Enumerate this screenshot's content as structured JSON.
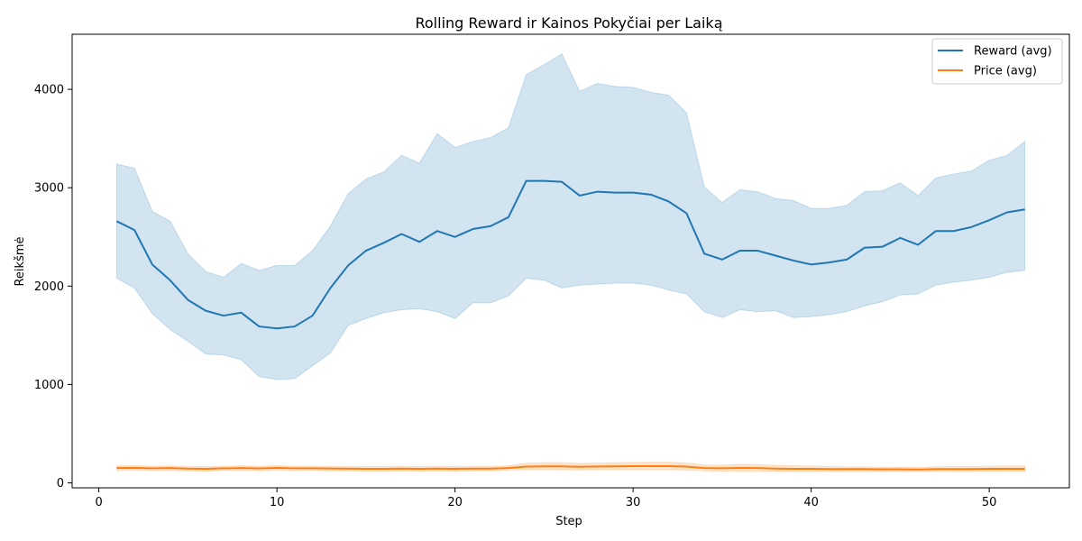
{
  "chart_data": {
    "type": "line",
    "title": "Rolling Reward ir Kainos Pokyčiai per Laiką",
    "xlabel": "Step",
    "ylabel": "Reikšmė",
    "xlim": [
      -1.5,
      54.5
    ],
    "ylim": [
      -50,
      4560
    ],
    "xticks": [
      0,
      10,
      20,
      30,
      40,
      50
    ],
    "yticks": [
      0,
      1000,
      2000,
      3000,
      4000
    ],
    "grid": false,
    "legend": "top-right",
    "x": [
      1,
      2,
      3,
      4,
      5,
      6,
      7,
      8,
      9,
      10,
      11,
      12,
      13,
      14,
      15,
      16,
      17,
      18,
      19,
      20,
      21,
      22,
      23,
      24,
      25,
      26,
      27,
      28,
      29,
      30,
      31,
      32,
      33,
      34,
      35,
      36,
      37,
      38,
      39,
      40,
      41,
      42,
      43,
      44,
      45,
      46,
      47,
      48,
      49,
      50,
      51,
      52
    ],
    "series": [
      {
        "name": "Reward (avg)",
        "color": "#1f77b4",
        "values": [
          2660,
          2570,
          2220,
          2060,
          1860,
          1750,
          1700,
          1730,
          1590,
          1570,
          1590,
          1700,
          1980,
          2210,
          2360,
          2440,
          2530,
          2450,
          2560,
          2500,
          2580,
          2610,
          2700,
          3070,
          3070,
          3060,
          2920,
          2960,
          2950,
          2950,
          2930,
          2860,
          2740,
          2330,
          2270,
          2360,
          2360,
          2310,
          2260,
          2220,
          2240,
          2270,
          2390,
          2400,
          2490,
          2420,
          2560,
          2560,
          2600,
          2670,
          2750,
          2780
        ],
        "upper": [
          3240,
          3200,
          2760,
          2660,
          2330,
          2150,
          2090,
          2230,
          2160,
          2210,
          2210,
          2360,
          2610,
          2940,
          3090,
          3160,
          3330,
          3250,
          3550,
          3410,
          3470,
          3510,
          3610,
          4150,
          4250,
          4360,
          3980,
          4060,
          4030,
          4020,
          3970,
          3940,
          3760,
          3010,
          2850,
          2980,
          2960,
          2890,
          2870,
          2790,
          2790,
          2820,
          2960,
          2970,
          3050,
          2920,
          3100,
          3140,
          3170,
          3280,
          3330,
          3470
        ],
        "lower": [
          2080,
          1980,
          1720,
          1560,
          1440,
          1310,
          1300,
          1250,
          1080,
          1050,
          1060,
          1190,
          1320,
          1600,
          1670,
          1730,
          1760,
          1770,
          1740,
          1670,
          1830,
          1830,
          1900,
          2080,
          2060,
          1980,
          2010,
          2020,
          2030,
          2030,
          2010,
          1960,
          1920,
          1740,
          1680,
          1760,
          1740,
          1750,
          1680,
          1690,
          1710,
          1740,
          1800,
          1840,
          1910,
          1920,
          2010,
          2040,
          2060,
          2090,
          2140,
          2160
        ]
      },
      {
        "name": "Price (avg)",
        "color": "#ff7f0e",
        "values": [
          150,
          152,
          148,
          150,
          145,
          143,
          148,
          150,
          147,
          152,
          148,
          148,
          146,
          145,
          143,
          143,
          145,
          143,
          145,
          143,
          145,
          145,
          150,
          165,
          168,
          168,
          163,
          166,
          168,
          170,
          170,
          170,
          165,
          150,
          148,
          152,
          150,
          145,
          143,
          142,
          140,
          140,
          140,
          138,
          138,
          135,
          140,
          140,
          140,
          142,
          143,
          143
        ],
        "upper": [
          172,
          175,
          170,
          172,
          168,
          165,
          170,
          173,
          170,
          175,
          170,
          170,
          168,
          167,
          165,
          165,
          168,
          165,
          168,
          166,
          168,
          168,
          175,
          200,
          205,
          205,
          198,
          202,
          205,
          208,
          210,
          210,
          202,
          182,
          180,
          188,
          186,
          178,
          174,
          170,
          165,
          163,
          163,
          160,
          160,
          157,
          163,
          165,
          166,
          168,
          172,
          172
        ],
        "lower": [
          125,
          128,
          125,
          127,
          122,
          120,
          125,
          126,
          123,
          128,
          124,
          124,
          122,
          122,
          120,
          120,
          122,
          120,
          122,
          120,
          122,
          122,
          126,
          135,
          135,
          134,
          130,
          133,
          134,
          135,
          134,
          133,
          130,
          122,
          120,
          120,
          118,
          116,
          114,
          114,
          114,
          115,
          115,
          114,
          114,
          112,
          116,
          116,
          116,
          117,
          117,
          117
        ]
      }
    ]
  }
}
